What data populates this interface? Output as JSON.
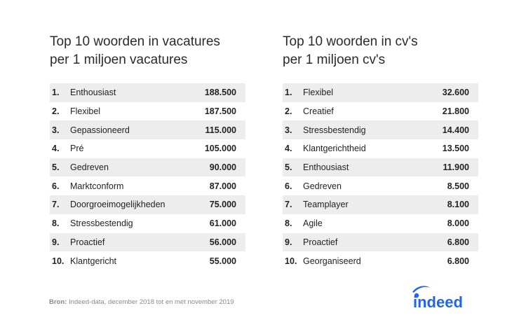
{
  "left": {
    "title_line1": "Top 10 woorden in vacatures",
    "title_line2": "per 1 miljoen vacatures",
    "rows": [
      {
        "rank": "1.",
        "word": "Enthousiast",
        "value": "188.500"
      },
      {
        "rank": "2.",
        "word": "Flexibel",
        "value": "187.500"
      },
      {
        "rank": "3.",
        "word": "Gepassioneerd",
        "value": "115.000"
      },
      {
        "rank": "4.",
        "word": "Pré",
        "value": "105.000"
      },
      {
        "rank": "5.",
        "word": "Gedreven",
        "value": "90.000"
      },
      {
        "rank": "6.",
        "word": "Marktconform",
        "value": "87.000"
      },
      {
        "rank": "7.",
        "word": "Doorgroeimogelijkheden",
        "value": "75.000"
      },
      {
        "rank": "8.",
        "word": "Stressbestendig",
        "value": "61.000"
      },
      {
        "rank": "9.",
        "word": "Proactief",
        "value": "56.000"
      },
      {
        "rank": "10.",
        "word": "Klantgericht",
        "value": "55.000"
      }
    ]
  },
  "right": {
    "title_line1": "Top 10 woorden in cv's",
    "title_line2": "per 1 miljoen cv's",
    "rows": [
      {
        "rank": "1.",
        "word": "Flexibel",
        "value": "32.600"
      },
      {
        "rank": "2.",
        "word": "Creatief",
        "value": "21.800"
      },
      {
        "rank": "3.",
        "word": "Stressbestendig",
        "value": "14.400"
      },
      {
        "rank": "4.",
        "word": "Klantgerichtheid",
        "value": "13.500"
      },
      {
        "rank": "5.",
        "word": "Enthousiast",
        "value": "11.900"
      },
      {
        "rank": "6.",
        "word": "Gedreven",
        "value": "8.500"
      },
      {
        "rank": "7.",
        "word": "Teamplayer",
        "value": "8.100"
      },
      {
        "rank": "8.",
        "word": "Agile",
        "value": "8.000"
      },
      {
        "rank": "9.",
        "word": "Proactief",
        "value": "6.800"
      },
      {
        "rank": "10.",
        "word": "Georganiseerd",
        "value": "6.800"
      }
    ]
  },
  "source": {
    "label": "Bron:",
    "text": "Indeed-data, december 2018 tot en met november 2019"
  },
  "logo": {
    "text": "indeed",
    "color": "#2164f3"
  },
  "colors": {
    "row_shade": "#ededed"
  }
}
